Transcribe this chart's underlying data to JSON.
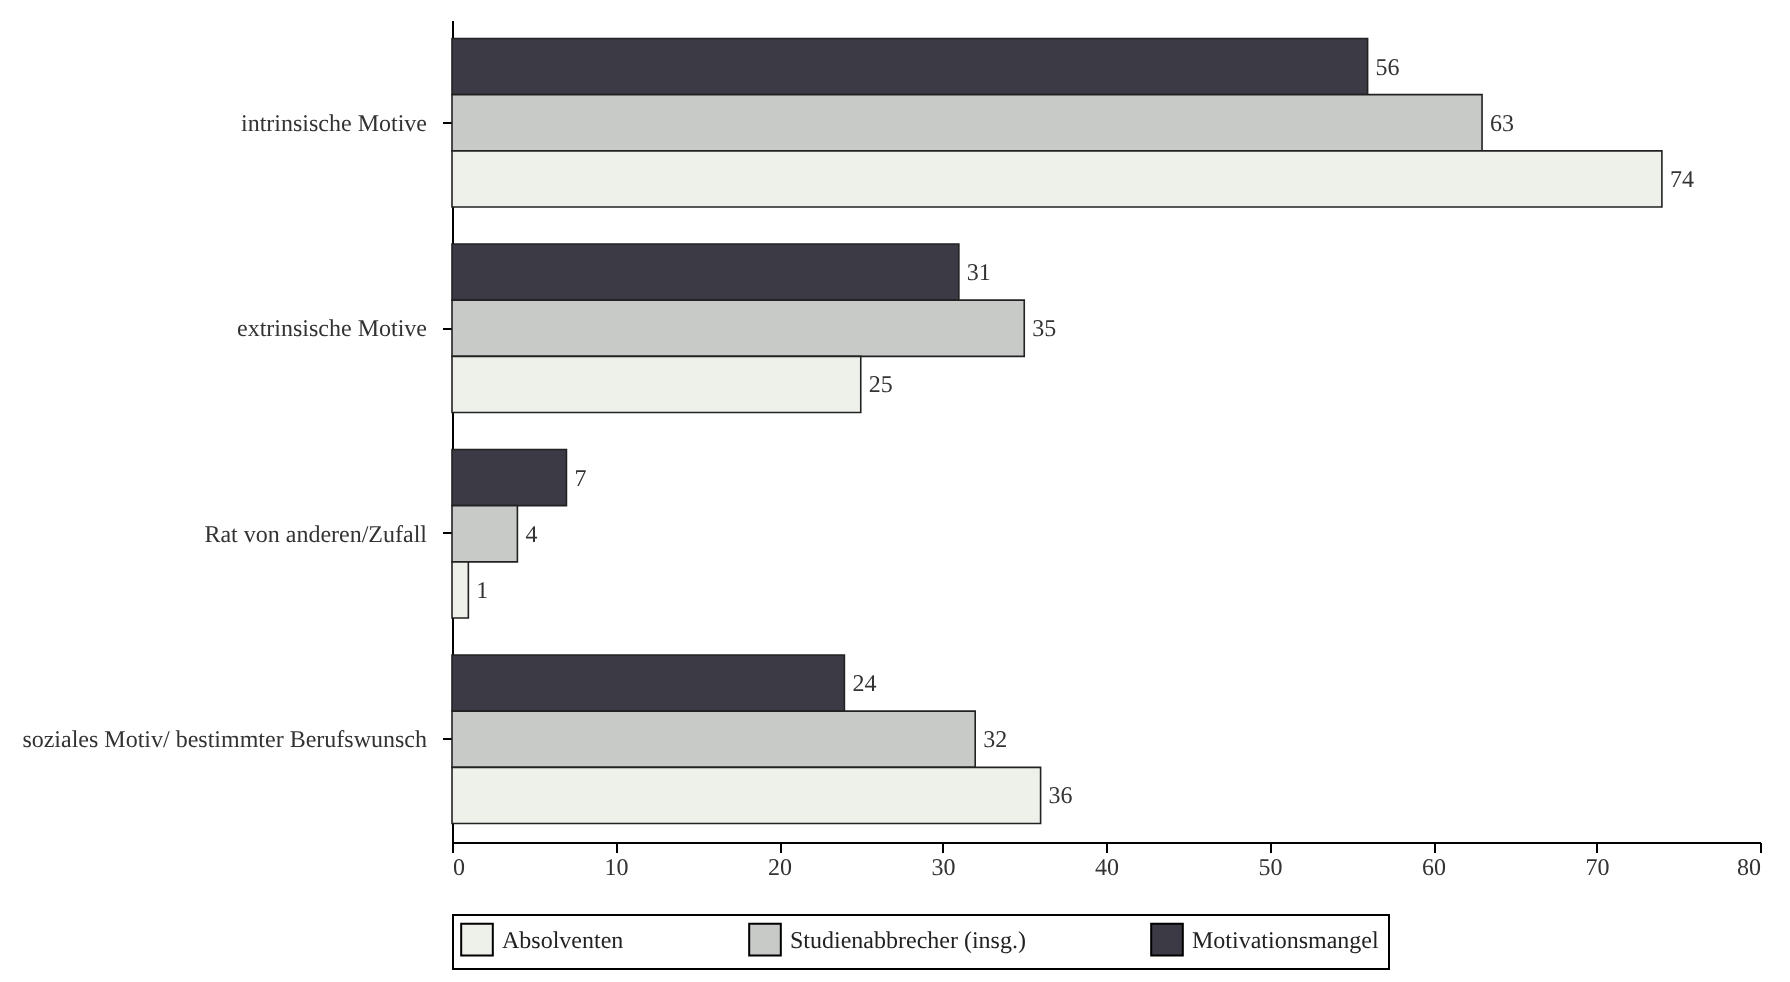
{
  "chart_data": {
    "type": "bar",
    "orientation": "horizontal",
    "categories": [
      "intrinsische Motive",
      "extrinsische Motive",
      "Rat von anderen/Zufall",
      "soziales Motiv/ bestimmter Berufswunsch"
    ],
    "series": [
      {
        "name": "Motivationsmangel",
        "color": "#3c3a44",
        "values": [
          56,
          31,
          7,
          24
        ]
      },
      {
        "name": "Studienabbrecher (insg.)",
        "color": "#c8cac8",
        "values": [
          63,
          35,
          4,
          32
        ]
      },
      {
        "name": "Absolventen",
        "color": "#eef0ea",
        "values": [
          74,
          25,
          1,
          36
        ]
      }
    ],
    "xlim": [
      0,
      80
    ],
    "xticks": [
      0,
      10,
      20,
      30,
      40,
      50,
      60,
      70,
      80
    ],
    "data_labels": true,
    "legend": "bottom"
  }
}
